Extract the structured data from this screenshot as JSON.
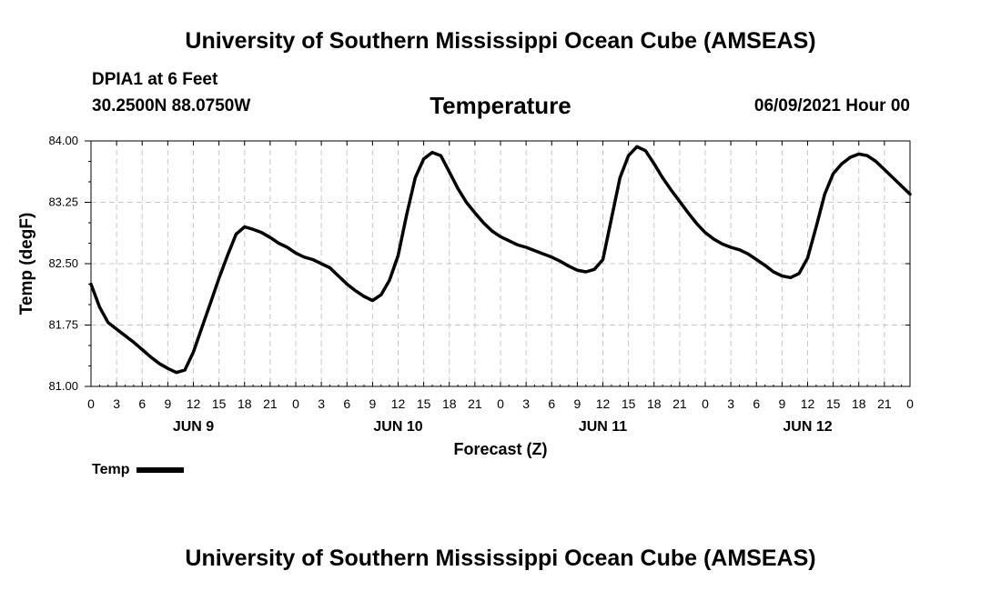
{
  "header": {
    "top_title": "University of Southern Mississippi Ocean Cube (AMSEAS)",
    "station": "DPIA1 at 6 Feet",
    "coords": "30.2500N  88.0750W",
    "variable_title": "Temperature",
    "datetime": "06/09/2021 Hour 00"
  },
  "footer": {
    "bottom_title": "University of Southern Mississippi Ocean Cube (AMSEAS)"
  },
  "chart_data": {
    "type": "line",
    "title": "Temperature",
    "xlabel": "Forecast (Z)",
    "ylabel": "Temp (degF)",
    "xlim": [
      0,
      96
    ],
    "ylim": [
      81.0,
      84.0
    ],
    "grid": true,
    "ytick_values": [
      81.0,
      81.75,
      82.5,
      83.25,
      84.0
    ],
    "ytick_labels": [
      "81.00",
      "81.75",
      "82.50",
      "83.25",
      "84.00"
    ],
    "xtick_labels": [
      "0",
      "3",
      "6",
      "9",
      "12",
      "15",
      "18",
      "21",
      "0",
      "3",
      "6",
      "9",
      "12",
      "15",
      "18",
      "21",
      "0",
      "3",
      "6",
      "9",
      "12",
      "15",
      "18",
      "21",
      "0",
      "3",
      "6",
      "9",
      "12",
      "15",
      "18",
      "21",
      "0"
    ],
    "day_labels": [
      {
        "label": "JUN 9",
        "hour": 12
      },
      {
        "label": "JUN 10",
        "hour": 36
      },
      {
        "label": "JUN 11",
        "hour": 60
      },
      {
        "label": "JUN 12",
        "hour": 84
      }
    ],
    "legend": [
      {
        "name": "Temp",
        "position": "below-left"
      }
    ],
    "series": [
      {
        "name": "Temp",
        "x": [
          0,
          1,
          2,
          3,
          4,
          5,
          6,
          7,
          8,
          9,
          10,
          11,
          12,
          13,
          14,
          15,
          16,
          17,
          18,
          19,
          20,
          21,
          22,
          23,
          24,
          25,
          26,
          27,
          28,
          29,
          30,
          31,
          32,
          33,
          34,
          35,
          36,
          37,
          38,
          39,
          40,
          41,
          42,
          43,
          44,
          45,
          46,
          47,
          48,
          49,
          50,
          51,
          52,
          53,
          54,
          55,
          56,
          57,
          58,
          59,
          60,
          61,
          62,
          63,
          64,
          65,
          66,
          67,
          68,
          69,
          70,
          71,
          72,
          73,
          74,
          75,
          76,
          77,
          78,
          79,
          80,
          81,
          82,
          83,
          84,
          85,
          86,
          87,
          88,
          89,
          90,
          91,
          92,
          93,
          94,
          95,
          96
        ],
        "values": [
          82.25,
          81.97,
          81.78,
          81.7,
          81.62,
          81.54,
          81.45,
          81.36,
          81.28,
          81.22,
          81.17,
          81.2,
          81.42,
          81.72,
          82.02,
          82.32,
          82.6,
          82.86,
          82.95,
          82.92,
          82.88,
          82.82,
          82.75,
          82.7,
          82.63,
          82.58,
          82.55,
          82.5,
          82.45,
          82.35,
          82.25,
          82.17,
          82.1,
          82.05,
          82.12,
          82.3,
          82.6,
          83.1,
          83.55,
          83.78,
          83.86,
          83.82,
          83.62,
          83.42,
          83.25,
          83.12,
          83.0,
          82.9,
          82.83,
          82.78,
          82.73,
          82.7,
          82.66,
          82.62,
          82.58,
          82.53,
          82.47,
          82.42,
          82.4,
          82.43,
          82.55,
          83.05,
          83.55,
          83.82,
          83.93,
          83.88,
          83.72,
          83.55,
          83.4,
          83.26,
          83.12,
          82.99,
          82.88,
          82.8,
          82.74,
          82.7,
          82.67,
          82.62,
          82.55,
          82.48,
          82.4,
          82.35,
          82.33,
          82.38,
          82.57,
          82.95,
          83.35,
          83.6,
          83.72,
          83.8,
          83.84,
          83.82,
          83.75,
          83.65,
          83.55,
          83.45,
          83.35
        ]
      }
    ]
  }
}
